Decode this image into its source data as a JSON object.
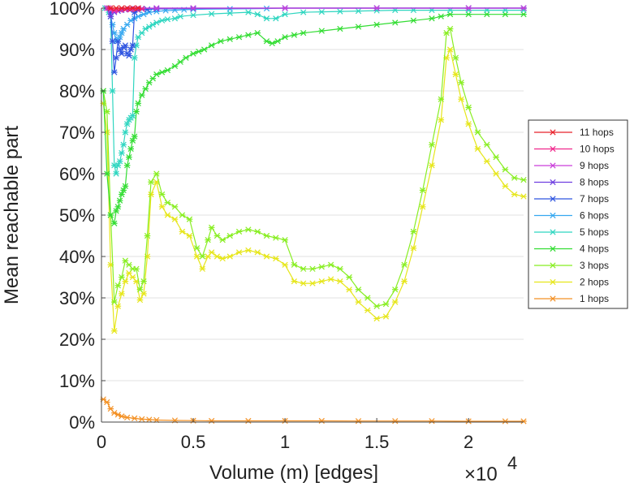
{
  "chart_data": {
    "type": "line",
    "xlabel": "Volume (m) [edges]",
    "ylabel": "Mean reachable part",
    "x_multiplier_label": "×10",
    "x_multiplier_exp": "4",
    "xlim": [
      0,
      23000
    ],
    "ylim": [
      0,
      100
    ],
    "x_ticks": [
      0,
      5000,
      10000,
      15000,
      20000
    ],
    "x_tick_labels": [
      "0",
      "0.5",
      "1",
      "1.5",
      "2"
    ],
    "y_ticks": [
      0,
      10,
      20,
      30,
      40,
      50,
      60,
      70,
      80,
      90,
      100
    ],
    "y_tick_labels": [
      "0%",
      "10%",
      "20%",
      "30%",
      "40%",
      "50%",
      "60%",
      "70%",
      "80%",
      "90%",
      "100%"
    ],
    "grid": "horizontal",
    "legend_position": "right",
    "series": [
      {
        "name": "11 hops",
        "color": "#e8212b",
        "x": [
          500,
          800,
          1100,
          1400,
          1700,
          2000
        ],
        "y": [
          100,
          100,
          100,
          100,
          100,
          100
        ]
      },
      {
        "name": "10 hops",
        "color": "#f0278c",
        "x": [
          400,
          700,
          1000,
          1300,
          1600,
          1900,
          2200
        ],
        "y": [
          100,
          99.5,
          99.6,
          99.7,
          99.7,
          99.8,
          99.8
        ]
      },
      {
        "name": "9 hops",
        "color": "#c93fd9",
        "x": [
          300,
          500,
          700,
          1000,
          1300,
          1600,
          2000,
          3000,
          5000,
          10000,
          15000,
          20000,
          23000
        ],
        "y": [
          100,
          99.5,
          99.3,
          99.6,
          99.7,
          99.8,
          100,
          100,
          100,
          100,
          100,
          100,
          100
        ]
      },
      {
        "name": "8 hops",
        "color": "#6f3fe0",
        "x": [
          300,
          500,
          700,
          900,
          1100,
          1300,
          1500,
          1800,
          2200,
          3000,
          5000,
          10000,
          15000,
          20000,
          23000
        ],
        "y": [
          100,
          98,
          99,
          99.3,
          99.5,
          99.6,
          99.7,
          99.8,
          99.9,
          100,
          100,
          100,
          100,
          100,
          100
        ]
      },
      {
        "name": "7 hops",
        "color": "#2f55e0",
        "x": [
          300,
          500,
          600,
          700,
          800,
          900,
          1000,
          1100,
          1200,
          1300,
          1400,
          1500,
          1600,
          1700,
          1800,
          2000,
          2500,
          3000,
          5000,
          10000,
          15000,
          20000,
          23000
        ],
        "y": [
          100,
          99,
          92,
          84.5,
          88,
          92,
          90,
          89,
          90.5,
          91,
          89,
          88.5,
          90,
          91,
          99,
          99.5,
          99.7,
          99.8,
          99.9,
          100,
          100,
          100,
          100
        ]
      },
      {
        "name": "6 hops",
        "color": "#36a8f0",
        "x": [
          300,
          500,
          600,
          700,
          800,
          900,
          1000,
          1100,
          1200,
          1400,
          1600,
          1800,
          2000,
          2300,
          2600,
          3000,
          3500,
          4000,
          4500,
          5000,
          7000,
          9000,
          10000,
          15000,
          20000,
          23000
        ],
        "y": [
          100,
          98,
          96,
          94,
          92,
          92.5,
          93,
          94,
          95,
          96,
          97,
          97.5,
          98,
          98.5,
          99,
          99.2,
          99.4,
          99.5,
          99.6,
          99.7,
          99.8,
          99.9,
          100,
          100,
          100,
          100
        ]
      },
      {
        "name": "5 hops",
        "color": "#2fd6c0",
        "x": [
          200,
          400,
          500,
          600,
          700,
          800,
          900,
          1000,
          1100,
          1200,
          1300,
          1400,
          1500,
          1600,
          1700,
          1800,
          1900,
          2000,
          2200,
          2400,
          2600,
          2800,
          3000,
          3300,
          3600,
          4000,
          4300,
          5000,
          6000,
          7000,
          8000,
          8500,
          9000,
          9500,
          10000,
          11000,
          12000,
          13000,
          14000,
          15000,
          16000,
          17000,
          18000,
          19000,
          20000,
          21000,
          22000,
          23000
        ],
        "y": [
          100,
          99,
          98,
          80,
          62,
          60,
          62,
          63,
          65,
          67,
          70,
          72,
          73,
          73.5,
          74,
          88,
          91,
          93,
          94,
          95,
          95.5,
          96,
          96.5,
          97,
          97.3,
          97.5,
          98,
          98.3,
          98.6,
          98.8,
          99,
          98.5,
          97.5,
          97.5,
          98.5,
          99,
          99.1,
          99.2,
          99.3,
          99.4,
          99.5,
          99.5,
          99.5,
          99.5,
          99.5,
          99.5,
          99.5,
          99.5
        ]
      },
      {
        "name": "4 hops",
        "color": "#33dd33",
        "x": [
          100,
          300,
          500,
          700,
          800,
          900,
          1000,
          1100,
          1200,
          1300,
          1400,
          1500,
          1600,
          1700,
          1800,
          1900,
          2000,
          2200,
          2400,
          2600,
          2800,
          3000,
          3300,
          3600,
          4000,
          4300,
          4600,
          5000,
          5300,
          5600,
          6000,
          6500,
          7000,
          7500,
          8000,
          8500,
          9000,
          9300,
          9600,
          10000,
          10500,
          11000,
          12000,
          13000,
          14000,
          15000,
          16000,
          17000,
          18000,
          18500,
          19000,
          20000,
          21000,
          22000,
          23000
        ],
        "y": [
          80,
          60,
          50,
          48,
          51,
          52,
          53.5,
          55,
          56,
          57,
          62,
          64,
          66,
          68,
          69,
          75,
          77,
          79,
          80.5,
          82,
          83,
          84,
          84.5,
          85,
          86,
          87,
          88,
          89,
          89.5,
          90,
          91,
          92,
          92.5,
          93,
          93.5,
          94,
          92,
          91.5,
          92,
          93,
          93.5,
          94,
          94.5,
          95,
          95.5,
          96,
          96.5,
          97,
          97.5,
          98,
          98.5,
          98.5,
          98.5,
          98.5,
          98.5
        ]
      },
      {
        "name": "3 hops",
        "color": "#88ee22",
        "x": [
          100,
          300,
          500,
          700,
          900,
          1100,
          1300,
          1500,
          1700,
          1900,
          2100,
          2300,
          2500,
          2700,
          3000,
          3300,
          3600,
          4000,
          4400,
          4800,
          5200,
          5500,
          5800,
          6000,
          6300,
          6600,
          7000,
          7500,
          8000,
          8500,
          9000,
          9500,
          10000,
          10500,
          11000,
          11500,
          12000,
          12500,
          13000,
          13500,
          14000,
          14500,
          15000,
          15500,
          16000,
          16500,
          17000,
          17500,
          18000,
          18500,
          18800,
          19000,
          19300,
          19600,
          20000,
          20500,
          21000,
          21500,
          22000,
          22500,
          23000
        ],
        "y": [
          80,
          75,
          50,
          29,
          33,
          35,
          39,
          38,
          37,
          37,
          32,
          34,
          45,
          58,
          60,
          55,
          53,
          52,
          50,
          49,
          42,
          40,
          44,
          47,
          45,
          44,
          45,
          46,
          46.5,
          46,
          45,
          44.5,
          44,
          38,
          37,
          37,
          37.5,
          38,
          37,
          35,
          32,
          30,
          28,
          28.5,
          32,
          38,
          46,
          56,
          67,
          78,
          94,
          95,
          88,
          82,
          76,
          70,
          67,
          64,
          61,
          59,
          58.5
        ]
      },
      {
        "name": "2 hops",
        "color": "#e6e61a",
        "x": [
          100,
          300,
          500,
          700,
          900,
          1100,
          1300,
          1500,
          1700,
          1900,
          2100,
          2300,
          2500,
          2700,
          3000,
          3300,
          3600,
          4000,
          4400,
          4800,
          5200,
          5500,
          5800,
          6000,
          6300,
          6600,
          7000,
          7500,
          8000,
          8500,
          9000,
          9500,
          10000,
          10500,
          11000,
          11500,
          12000,
          12500,
          13000,
          13500,
          14000,
          14500,
          15000,
          15500,
          16000,
          16500,
          17000,
          17500,
          18000,
          18500,
          18800,
          19000,
          19300,
          19600,
          20000,
          20500,
          21000,
          21500,
          22000,
          22500,
          23000
        ],
        "y": [
          77,
          70,
          38,
          22,
          28,
          31,
          34,
          36,
          35,
          34,
          29.5,
          31,
          40,
          55,
          58,
          52,
          50,
          49,
          46,
          45,
          40,
          37,
          40,
          41,
          40,
          39.5,
          40,
          41,
          41.5,
          41,
          40,
          39.5,
          38,
          34,
          33.5,
          33.5,
          34,
          34.5,
          34,
          32,
          29,
          27,
          25,
          25.5,
          29,
          34,
          42,
          52,
          62,
          73,
          88,
          90,
          84,
          78,
          72,
          66,
          63,
          60,
          57,
          55,
          54.5
        ]
      },
      {
        "name": "1 hops",
        "color": "#f39125",
        "x": [
          100,
          300,
          500,
          700,
          900,
          1100,
          1400,
          1800,
          2200,
          2600,
          3000,
          4000,
          5000,
          6000,
          8000,
          10000,
          12000,
          14000,
          16000,
          18000,
          20000,
          22000,
          23000
        ],
        "y": [
          5.5,
          4.8,
          3.2,
          2.2,
          1.8,
          1.4,
          1.1,
          0.9,
          0.7,
          0.6,
          0.5,
          0.4,
          0.35,
          0.3,
          0.3,
          0.3,
          0.3,
          0.25,
          0.25,
          0.25,
          0.2,
          0.2,
          0.2
        ]
      }
    ]
  }
}
